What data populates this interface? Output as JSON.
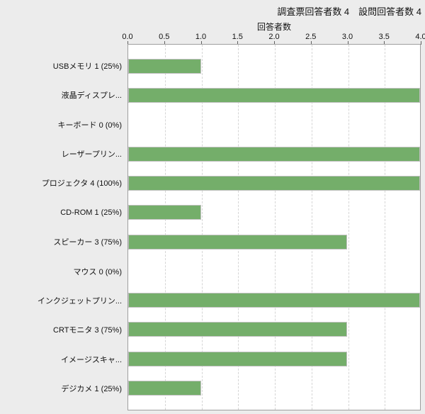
{
  "header": {
    "text": "調査票回答者数 4　設問回答者数 4"
  },
  "chart_data": {
    "type": "bar",
    "orientation": "horizontal",
    "axis_title": "回答者数",
    "categories": [
      "USBメモリ 1 (25%)",
      "液晶ディスプレ...",
      "キーボード 0 (0%)",
      "レーザープリン...",
      "プロジェクタ 4 (100%)",
      "CD-ROM 1 (25%)",
      "スピーカー 3 (75%)",
      "マウス 0 (0%)",
      "インクジェットプリン...",
      "CRTモニタ 3 (75%)",
      "イメージスキャ...",
      "デジカメ 1 (25%)"
    ],
    "values": [
      1,
      4,
      0,
      4,
      4,
      1,
      3,
      0,
      4,
      3,
      3,
      1
    ],
    "xlim": [
      0.0,
      4.0
    ],
    "xticks": [
      0.0,
      0.5,
      1.0,
      1.5,
      2.0,
      2.5,
      3.0,
      3.5,
      4.0
    ],
    "xtick_labels": [
      "0.0",
      "0.5",
      "1.0",
      "1.5",
      "2.0",
      "2.5",
      "3.0",
      "3.5",
      "4.0"
    ],
    "grid": true,
    "colors": {
      "bar_fill": "#74ae6a",
      "bar_border": "#c2c2c2",
      "page_background": "#ececec",
      "plot_background": "#ffffff",
      "plot_border": "#9e9e9e",
      "gridline": "#d5d5d5"
    }
  }
}
